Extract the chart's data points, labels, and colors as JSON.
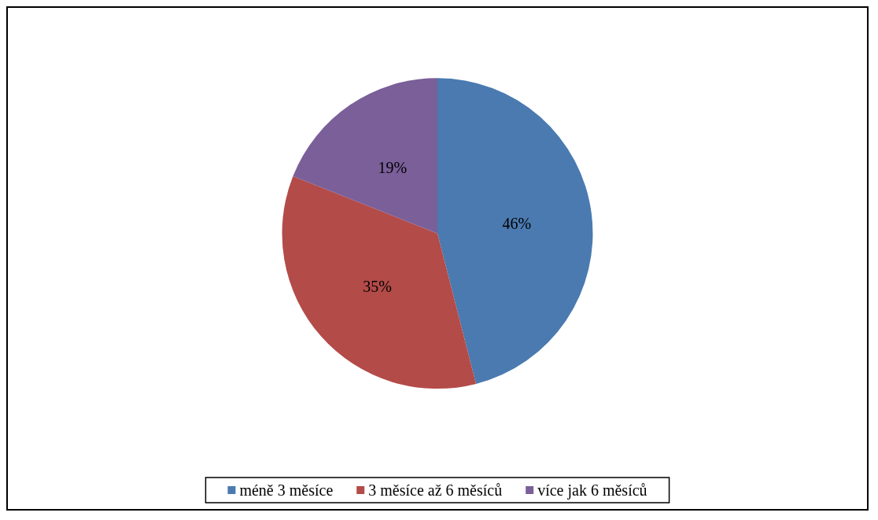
{
  "chart_data": {
    "type": "pie",
    "categories": [
      "méně 3 měsíce",
      "3 měsíce až 6 měsíců",
      "více jak 6 měsíců"
    ],
    "values": [
      46,
      35,
      19
    ],
    "colors": [
      "#4a7ab0",
      "#b34b48",
      "#7a5f99"
    ],
    "value_labels": [
      "46%",
      "35%",
      "19%"
    ],
    "legend": "bottom"
  }
}
